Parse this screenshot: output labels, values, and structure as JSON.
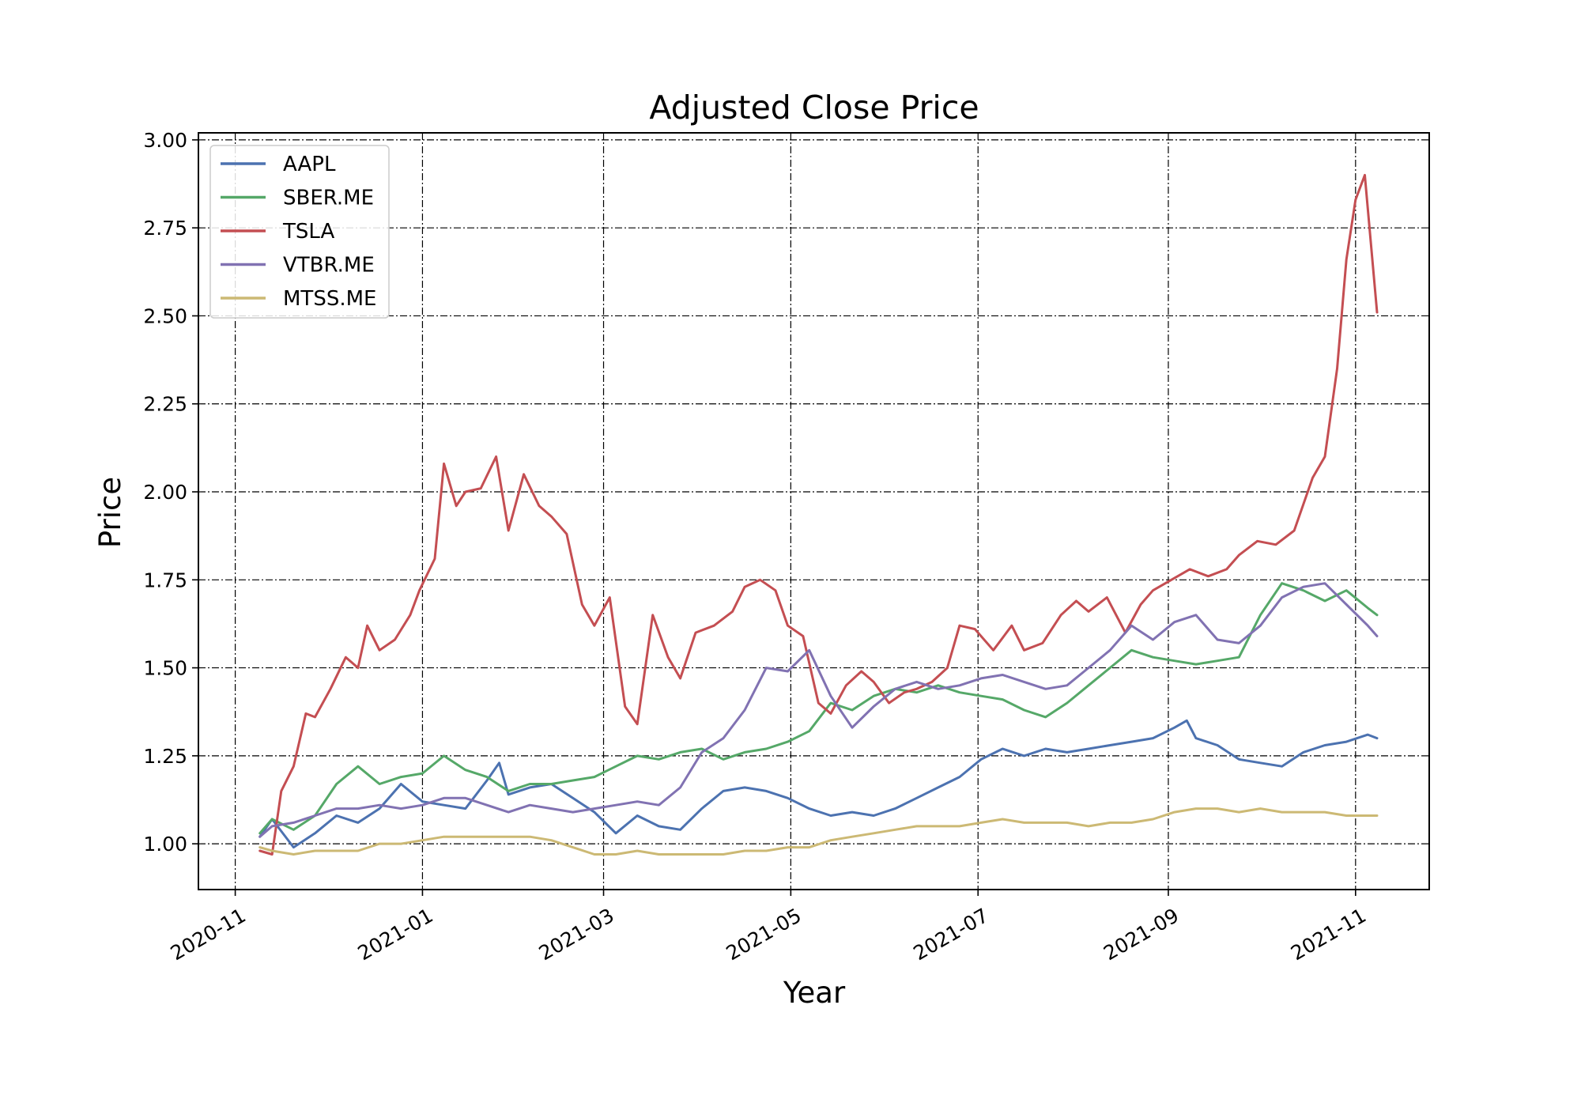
{
  "chart_data": {
    "type": "line",
    "title": "Adjusted Close Price",
    "xlabel": "Year",
    "ylabel": "Price",
    "xlim": [
      "2020-10-20",
      "2021-11-25"
    ],
    "ylim": [
      0.87,
      3.02
    ],
    "x_ticks": [
      "2020-11",
      "2021-01",
      "2021-03",
      "2021-05",
      "2021-07",
      "2021-09",
      "2021-11"
    ],
    "y_ticks": [
      "1.00",
      "1.25",
      "1.50",
      "1.75",
      "2.00",
      "2.25",
      "2.50",
      "2.75",
      "3.00"
    ],
    "grid": true,
    "legend_position": "upper-left",
    "series": [
      {
        "name": "AAPL",
        "color": "#4c72b0",
        "x": [
          "2020-11-09",
          "2020-11-13",
          "2020-11-20",
          "2020-11-27",
          "2020-12-04",
          "2020-12-11",
          "2020-12-18",
          "2020-12-25",
          "2021-01-01",
          "2021-01-08",
          "2021-01-15",
          "2021-01-22",
          "2021-01-26",
          "2021-01-29",
          "2021-02-05",
          "2021-02-12",
          "2021-02-19",
          "2021-02-26",
          "2021-03-05",
          "2021-03-12",
          "2021-03-19",
          "2021-03-26",
          "2021-04-02",
          "2021-04-09",
          "2021-04-16",
          "2021-04-23",
          "2021-04-30",
          "2021-05-07",
          "2021-05-14",
          "2021-05-21",
          "2021-05-28",
          "2021-06-04",
          "2021-06-11",
          "2021-06-18",
          "2021-06-25",
          "2021-07-02",
          "2021-07-09",
          "2021-07-16",
          "2021-07-23",
          "2021-07-30",
          "2021-08-06",
          "2021-08-13",
          "2021-08-20",
          "2021-08-27",
          "2021-09-03",
          "2021-09-07",
          "2021-09-10",
          "2021-09-17",
          "2021-09-24",
          "2021-10-01",
          "2021-10-08",
          "2021-10-15",
          "2021-10-22",
          "2021-10-29",
          "2021-11-05",
          "2021-11-08"
        ],
        "y": [
          1.02,
          1.07,
          0.99,
          1.03,
          1.08,
          1.06,
          1.1,
          1.17,
          1.12,
          1.11,
          1.1,
          1.18,
          1.23,
          1.14,
          1.16,
          1.17,
          1.13,
          1.09,
          1.03,
          1.08,
          1.05,
          1.04,
          1.1,
          1.15,
          1.16,
          1.15,
          1.13,
          1.1,
          1.08,
          1.09,
          1.08,
          1.1,
          1.13,
          1.16,
          1.19,
          1.24,
          1.27,
          1.25,
          1.27,
          1.26,
          1.27,
          1.28,
          1.29,
          1.3,
          1.33,
          1.35,
          1.3,
          1.28,
          1.24,
          1.23,
          1.22,
          1.26,
          1.28,
          1.29,
          1.31,
          1.3
        ]
      },
      {
        "name": "SBER.ME",
        "color": "#55a868",
        "x": [
          "2020-11-09",
          "2020-11-13",
          "2020-11-20",
          "2020-11-27",
          "2020-12-04",
          "2020-12-11",
          "2020-12-18",
          "2020-12-25",
          "2021-01-01",
          "2021-01-08",
          "2021-01-15",
          "2021-01-22",
          "2021-01-29",
          "2021-02-05",
          "2021-02-12",
          "2021-02-19",
          "2021-02-26",
          "2021-03-05",
          "2021-03-12",
          "2021-03-19",
          "2021-03-26",
          "2021-04-02",
          "2021-04-09",
          "2021-04-16",
          "2021-04-23",
          "2021-04-30",
          "2021-05-07",
          "2021-05-14",
          "2021-05-21",
          "2021-05-28",
          "2021-06-04",
          "2021-06-11",
          "2021-06-18",
          "2021-06-25",
          "2021-07-02",
          "2021-07-09",
          "2021-07-16",
          "2021-07-23",
          "2021-07-30",
          "2021-08-06",
          "2021-08-13",
          "2021-08-20",
          "2021-08-27",
          "2021-09-03",
          "2021-09-10",
          "2021-09-17",
          "2021-09-24",
          "2021-10-01",
          "2021-10-08",
          "2021-10-15",
          "2021-10-22",
          "2021-10-29",
          "2021-11-05",
          "2021-11-08"
        ],
        "y": [
          1.03,
          1.07,
          1.04,
          1.08,
          1.17,
          1.22,
          1.17,
          1.19,
          1.2,
          1.25,
          1.21,
          1.19,
          1.15,
          1.17,
          1.17,
          1.18,
          1.19,
          1.22,
          1.25,
          1.24,
          1.26,
          1.27,
          1.24,
          1.26,
          1.27,
          1.29,
          1.32,
          1.4,
          1.38,
          1.42,
          1.44,
          1.43,
          1.45,
          1.43,
          1.42,
          1.41,
          1.38,
          1.36,
          1.4,
          1.45,
          1.5,
          1.55,
          1.53,
          1.52,
          1.51,
          1.52,
          1.53,
          1.65,
          1.74,
          1.72,
          1.69,
          1.72,
          1.67,
          1.65
        ]
      },
      {
        "name": "TSLA",
        "color": "#c44e52",
        "x": [
          "2020-11-09",
          "2020-11-13",
          "2020-11-16",
          "2020-11-20",
          "2020-11-24",
          "2020-11-27",
          "2020-12-02",
          "2020-12-07",
          "2020-12-11",
          "2020-12-14",
          "2020-12-18",
          "2020-12-23",
          "2020-12-28",
          "2020-12-31",
          "2021-01-05",
          "2021-01-08",
          "2021-01-12",
          "2021-01-15",
          "2021-01-20",
          "2021-01-25",
          "2021-01-29",
          "2021-02-03",
          "2021-02-08",
          "2021-02-12",
          "2021-02-17",
          "2021-02-22",
          "2021-02-26",
          "2021-03-03",
          "2021-03-08",
          "2021-03-12",
          "2021-03-17",
          "2021-03-22",
          "2021-03-26",
          "2021-03-31",
          "2021-04-06",
          "2021-04-12",
          "2021-04-16",
          "2021-04-21",
          "2021-04-26",
          "2021-04-30",
          "2021-05-05",
          "2021-05-10",
          "2021-05-14",
          "2021-05-19",
          "2021-05-24",
          "2021-05-28",
          "2021-06-02",
          "2021-06-07",
          "2021-06-11",
          "2021-06-16",
          "2021-06-21",
          "2021-06-25",
          "2021-06-30",
          "2021-07-06",
          "2021-07-12",
          "2021-07-16",
          "2021-07-22",
          "2021-07-28",
          "2021-08-02",
          "2021-08-06",
          "2021-08-12",
          "2021-08-18",
          "2021-08-23",
          "2021-08-27",
          "2021-09-02",
          "2021-09-08",
          "2021-09-14",
          "2021-09-20",
          "2021-09-24",
          "2021-09-30",
          "2021-10-06",
          "2021-10-12",
          "2021-10-18",
          "2021-10-22",
          "2021-10-26",
          "2021-10-29",
          "2021-11-01",
          "2021-11-04",
          "2021-11-08"
        ],
        "y": [
          0.98,
          0.97,
          1.15,
          1.22,
          1.37,
          1.36,
          1.44,
          1.53,
          1.5,
          1.62,
          1.55,
          1.58,
          1.65,
          1.72,
          1.81,
          2.08,
          1.96,
          2.0,
          2.01,
          2.1,
          1.89,
          2.05,
          1.96,
          1.93,
          1.88,
          1.68,
          1.62,
          1.7,
          1.39,
          1.34,
          1.65,
          1.53,
          1.47,
          1.6,
          1.62,
          1.66,
          1.73,
          1.75,
          1.72,
          1.62,
          1.59,
          1.4,
          1.37,
          1.45,
          1.49,
          1.46,
          1.4,
          1.43,
          1.44,
          1.46,
          1.5,
          1.62,
          1.61,
          1.55,
          1.62,
          1.55,
          1.57,
          1.65,
          1.69,
          1.66,
          1.7,
          1.6,
          1.68,
          1.72,
          1.75,
          1.78,
          1.76,
          1.78,
          1.82,
          1.86,
          1.85,
          1.89,
          2.04,
          2.1,
          2.35,
          2.66,
          2.83,
          2.9,
          2.51
        ]
      },
      {
        "name": "VTBR.ME",
        "color": "#8172b2",
        "x": [
          "2020-11-09",
          "2020-11-13",
          "2020-11-20",
          "2020-11-27",
          "2020-12-04",
          "2020-12-11",
          "2020-12-18",
          "2020-12-25",
          "2021-01-01",
          "2021-01-08",
          "2021-01-15",
          "2021-01-22",
          "2021-01-29",
          "2021-02-05",
          "2021-02-12",
          "2021-02-19",
          "2021-02-26",
          "2021-03-05",
          "2021-03-12",
          "2021-03-19",
          "2021-03-26",
          "2021-04-02",
          "2021-04-09",
          "2021-04-16",
          "2021-04-23",
          "2021-04-30",
          "2021-05-07",
          "2021-05-14",
          "2021-05-21",
          "2021-05-28",
          "2021-06-04",
          "2021-06-11",
          "2021-06-18",
          "2021-06-25",
          "2021-07-02",
          "2021-07-09",
          "2021-07-16",
          "2021-07-23",
          "2021-07-30",
          "2021-08-06",
          "2021-08-13",
          "2021-08-20",
          "2021-08-27",
          "2021-09-03",
          "2021-09-10",
          "2021-09-17",
          "2021-09-24",
          "2021-10-01",
          "2021-10-08",
          "2021-10-15",
          "2021-10-22",
          "2021-10-29",
          "2021-11-05",
          "2021-11-08"
        ],
        "y": [
          1.02,
          1.05,
          1.06,
          1.08,
          1.1,
          1.1,
          1.11,
          1.1,
          1.11,
          1.13,
          1.13,
          1.11,
          1.09,
          1.11,
          1.1,
          1.09,
          1.1,
          1.11,
          1.12,
          1.11,
          1.16,
          1.26,
          1.3,
          1.38,
          1.5,
          1.49,
          1.55,
          1.42,
          1.33,
          1.39,
          1.44,
          1.46,
          1.44,
          1.45,
          1.47,
          1.48,
          1.46,
          1.44,
          1.45,
          1.5,
          1.55,
          1.62,
          1.58,
          1.63,
          1.65,
          1.58,
          1.57,
          1.62,
          1.7,
          1.73,
          1.74,
          1.68,
          1.62,
          1.59
        ]
      },
      {
        "name": "MTSS.ME",
        "color": "#ccb974",
        "x": [
          "2020-11-09",
          "2020-11-13",
          "2020-11-20",
          "2020-11-27",
          "2020-12-04",
          "2020-12-11",
          "2020-12-18",
          "2020-12-25",
          "2021-01-01",
          "2021-01-08",
          "2021-01-15",
          "2021-01-22",
          "2021-01-29",
          "2021-02-05",
          "2021-02-12",
          "2021-02-19",
          "2021-02-26",
          "2021-03-05",
          "2021-03-12",
          "2021-03-19",
          "2021-03-26",
          "2021-04-02",
          "2021-04-09",
          "2021-04-16",
          "2021-04-23",
          "2021-04-30",
          "2021-05-07",
          "2021-05-14",
          "2021-05-21",
          "2021-05-28",
          "2021-06-04",
          "2021-06-11",
          "2021-06-18",
          "2021-06-25",
          "2021-07-02",
          "2021-07-09",
          "2021-07-16",
          "2021-07-23",
          "2021-07-30",
          "2021-08-06",
          "2021-08-13",
          "2021-08-20",
          "2021-08-27",
          "2021-09-03",
          "2021-09-10",
          "2021-09-17",
          "2021-09-24",
          "2021-10-01",
          "2021-10-08",
          "2021-10-15",
          "2021-10-22",
          "2021-10-29",
          "2021-11-05",
          "2021-11-08"
        ],
        "y": [
          0.99,
          0.98,
          0.97,
          0.98,
          0.98,
          0.98,
          1.0,
          1.0,
          1.01,
          1.02,
          1.02,
          1.02,
          1.02,
          1.02,
          1.01,
          0.99,
          0.97,
          0.97,
          0.98,
          0.97,
          0.97,
          0.97,
          0.97,
          0.98,
          0.98,
          0.99,
          0.99,
          1.01,
          1.02,
          1.03,
          1.04,
          1.05,
          1.05,
          1.05,
          1.06,
          1.07,
          1.06,
          1.06,
          1.06,
          1.05,
          1.06,
          1.06,
          1.07,
          1.09,
          1.1,
          1.1,
          1.09,
          1.1,
          1.09,
          1.09,
          1.09,
          1.08,
          1.08,
          1.08
        ]
      }
    ]
  }
}
